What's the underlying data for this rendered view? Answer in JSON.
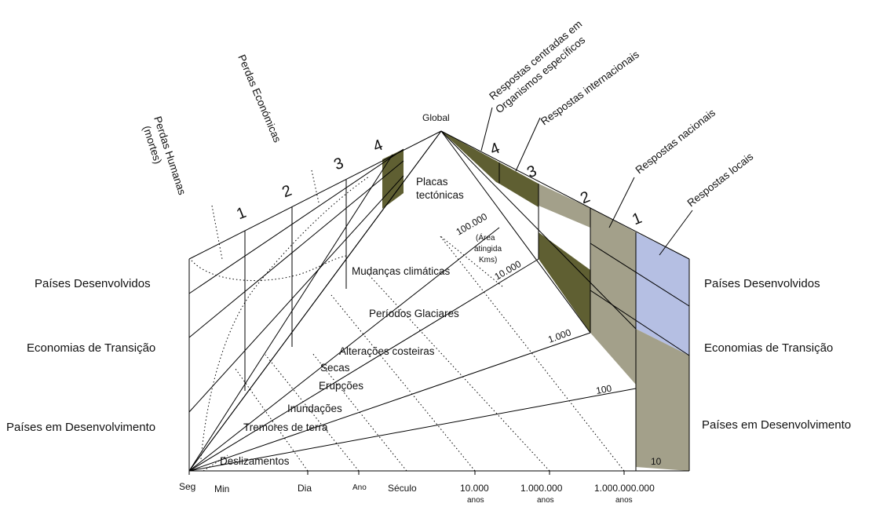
{
  "apex_label": "Global",
  "left_side": {
    "rows": [
      "Países Desenvolvidos",
      "Economias de Transição",
      "Países em Desenvolvimento"
    ],
    "level_numbers": [
      "1",
      "2",
      "3",
      "4"
    ],
    "curve_labels": {
      "human_1": "Perdas Humanas",
      "human_2": "(mortes)",
      "economic": "Perdas Económicas"
    }
  },
  "right_side": {
    "rows": [
      "Países Desenvolvidos",
      "Economias de Transição",
      "Países em Desenvolvimento"
    ],
    "level_numbers": [
      "4",
      "3",
      "2",
      "1"
    ],
    "responses": {
      "org_1": "Respostas centradas em",
      "org_2": "Organismos específicos",
      "international": "Respostas internacionais",
      "national": "Respostas nacionais",
      "local": "Respostas locais"
    }
  },
  "phenomena": [
    "Placas",
    "tectónicas",
    "Mudanças climáticas",
    "Períodos Glaciares",
    "Alterações costeiras",
    "Secas",
    "Erupções",
    "Inundações",
    "Tremores de terra",
    "Deslizamentos"
  ],
  "area_scale": {
    "values": [
      "100.000",
      "10.000",
      "1.000",
      "100",
      "10"
    ],
    "label_1": "(Área",
    "label_2": "atingida",
    "label_3": "Kms)"
  },
  "time_axis": [
    {
      "label": "Seg",
      "sub": ""
    },
    {
      "label": "Min",
      "sub": ""
    },
    {
      "label": "Dia",
      "sub": ""
    },
    {
      "label": "Ano",
      "sub": ""
    },
    {
      "label": "Século",
      "sub": ""
    },
    {
      "label": "10.000",
      "sub": "anos"
    },
    {
      "label": "1.000.000",
      "sub": "anos"
    },
    {
      "label": "1.000.000.000",
      "sub": "anos"
    }
  ],
  "colors": {
    "dark_olive": "#5f5f32",
    "gray_olive": "#a3a08a",
    "light_blue": "#b5bfe3",
    "line": "#000000"
  }
}
